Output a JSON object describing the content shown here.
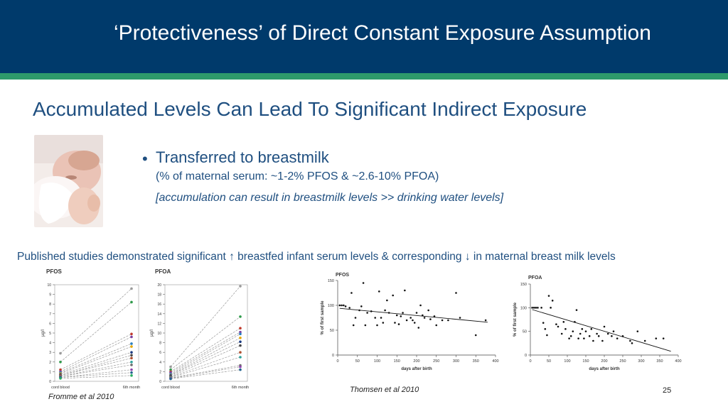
{
  "slide": {
    "title": "‘Protectiveness’ of Direct Constant Exposure Assumption",
    "subtitle": "Accumulated Levels Can Lead To Significant Indirect Exposure",
    "bullet": "Transferred to breastmilk",
    "sub_line_1": "(% of maternal serum: ~1-2% PFOS & ~2.6-10% PFOA)",
    "sub_line_2": "[accumulation can result in breastmilk levels >> drinking water levels]",
    "studies_line": "Published studies demonstrated significant ↑ breastfed infant serum levels & corresponding ↓ in maternal breast milk levels",
    "citation_left": "Fromme et al 2010",
    "citation_right": "Thomsen et al 2010",
    "page_number": "25",
    "colors": {
      "header": "#003a6b",
      "accent_rule": "#2e9a6b",
      "text": "#1f4f80"
    }
  },
  "chart_data": [
    {
      "type": "line",
      "title": "PFOS",
      "categories": [
        "cord blood",
        "6th month"
      ],
      "ylabel": "µg/l",
      "ylim": [
        0,
        10
      ],
      "yticks": [
        0,
        1,
        2,
        3,
        4,
        5,
        6,
        7,
        8,
        9,
        10
      ],
      "series": [
        {
          "values": [
            2.9,
            9.6
          ]
        },
        {
          "values": [
            2.0,
            8.2
          ]
        },
        {
          "values": [
            1.2,
            4.9
          ]
        },
        {
          "values": [
            1.0,
            4.6
          ]
        },
        {
          "values": [
            0.9,
            3.9
          ]
        },
        {
          "values": [
            0.8,
            3.6
          ]
        },
        {
          "values": [
            0.7,
            3.0
          ]
        },
        {
          "values": [
            0.6,
            2.7
          ]
        },
        {
          "values": [
            0.6,
            2.4
          ]
        },
        {
          "values": [
            0.5,
            2.0
          ]
        },
        {
          "values": [
            0.5,
            1.7
          ]
        },
        {
          "values": [
            0.4,
            1.2
          ]
        },
        {
          "values": [
            0.4,
            0.9
          ]
        },
        {
          "values": [
            0.3,
            0.6
          ]
        }
      ]
    },
    {
      "type": "line",
      "title": "PFOA",
      "categories": [
        "cord blood",
        "6th month"
      ],
      "ylabel": "µg/l",
      "ylim": [
        0,
        20
      ],
      "yticks": [
        0,
        2,
        4,
        6,
        8,
        10,
        12,
        14,
        16,
        18,
        20
      ],
      "series": [
        {
          "values": [
            3.0,
            19.7
          ]
        },
        {
          "values": [
            2.4,
            13.4
          ]
        },
        {
          "values": [
            2.0,
            11.0
          ]
        },
        {
          "values": [
            1.8,
            10.2
          ]
        },
        {
          "values": [
            1.5,
            9.8
          ]
        },
        {
          "values": [
            1.3,
            9.0
          ]
        },
        {
          "values": [
            1.2,
            8.2
          ]
        },
        {
          "values": [
            1.0,
            7.4
          ]
        },
        {
          "values": [
            0.9,
            6.0
          ]
        },
        {
          "values": [
            0.8,
            5.0
          ]
        },
        {
          "values": [
            0.7,
            3.3
          ]
        },
        {
          "values": [
            0.6,
            3.0
          ]
        },
        {
          "values": [
            0.5,
            2.4
          ]
        }
      ]
    },
    {
      "type": "scatter",
      "title": "PFOS",
      "xlabel": "days after birth",
      "ylabel": "% of first sample",
      "xlim": [
        0,
        400
      ],
      "ylim": [
        0,
        150
      ],
      "xticks": [
        0,
        50,
        100,
        150,
        200,
        250,
        300,
        350,
        400
      ],
      "yticks": [
        0,
        50,
        100,
        150
      ],
      "trendline": {
        "x": [
          5,
          380
        ],
        "y": [
          94,
          66
        ]
      },
      "points": [
        [
          5,
          100
        ],
        [
          10,
          100
        ],
        [
          15,
          100
        ],
        [
          20,
          98
        ],
        [
          30,
          95
        ],
        [
          35,
          125
        ],
        [
          40,
          60
        ],
        [
          45,
          75
        ],
        [
          55,
          90
        ],
        [
          60,
          98
        ],
        [
          65,
          145
        ],
        [
          70,
          60
        ],
        [
          75,
          85
        ],
        [
          85,
          88
        ],
        [
          95,
          75
        ],
        [
          100,
          60
        ],
        [
          105,
          128
        ],
        [
          110,
          75
        ],
        [
          115,
          65
        ],
        [
          120,
          90
        ],
        [
          125,
          110
        ],
        [
          130,
          85
        ],
        [
          140,
          120
        ],
        [
          145,
          65
        ],
        [
          150,
          80
        ],
        [
          155,
          62
        ],
        [
          160,
          78
        ],
        [
          165,
          85
        ],
        [
          170,
          130
        ],
        [
          175,
          70
        ],
        [
          185,
          75
        ],
        [
          190,
          70
        ],
        [
          195,
          65
        ],
        [
          200,
          85
        ],
        [
          205,
          55
        ],
        [
          210,
          100
        ],
        [
          215,
          80
        ],
        [
          220,
          75
        ],
        [
          230,
          90
        ],
        [
          235,
          72
        ],
        [
          245,
          78
        ],
        [
          250,
          60
        ],
        [
          265,
          70
        ],
        [
          280,
          70
        ],
        [
          300,
          125
        ],
        [
          310,
          75
        ],
        [
          350,
          40
        ],
        [
          375,
          70
        ]
      ]
    },
    {
      "type": "scatter",
      "title": "PFOA",
      "xlabel": "days after birth",
      "ylabel": "% of first sample",
      "xlim": [
        0,
        400
      ],
      "ylim": [
        0,
        150
      ],
      "xticks": [
        0,
        50,
        100,
        150,
        200,
        250,
        300,
        350,
        400
      ],
      "yticks": [
        0,
        50,
        100,
        150
      ],
      "trendline": {
        "x": [
          5,
          380
        ],
        "y": [
          96,
          8
        ]
      },
      "points": [
        [
          5,
          100
        ],
        [
          10,
          100
        ],
        [
          15,
          100
        ],
        [
          20,
          100
        ],
        [
          30,
          100
        ],
        [
          35,
          68
        ],
        [
          40,
          55
        ],
        [
          45,
          42
        ],
        [
          50,
          125
        ],
        [
          55,
          100
        ],
        [
          60,
          115
        ],
        [
          70,
          65
        ],
        [
          75,
          60
        ],
        [
          85,
          45
        ],
        [
          90,
          70
        ],
        [
          95,
          55
        ],
        [
          105,
          35
        ],
        [
          110,
          40
        ],
        [
          115,
          50
        ],
        [
          120,
          70
        ],
        [
          125,
          95
        ],
        [
          130,
          35
        ],
        [
          135,
          45
        ],
        [
          140,
          55
        ],
        [
          145,
          35
        ],
        [
          150,
          50
        ],
        [
          160,
          40
        ],
        [
          165,
          55
        ],
        [
          170,
          30
        ],
        [
          180,
          45
        ],
        [
          185,
          40
        ],
        [
          195,
          30
        ],
        [
          200,
          60
        ],
        [
          210,
          45
        ],
        [
          220,
          40
        ],
        [
          225,
          50
        ],
        [
          235,
          35
        ],
        [
          250,
          40
        ],
        [
          270,
          30
        ],
        [
          275,
          25
        ],
        [
          290,
          50
        ],
        [
          310,
          30
        ],
        [
          340,
          35
        ],
        [
          360,
          35
        ]
      ]
    }
  ]
}
